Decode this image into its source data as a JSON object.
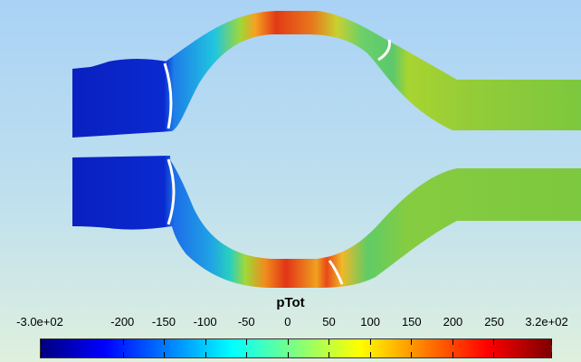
{
  "chart_data": {
    "type": "heatmap",
    "title": "",
    "colorbar": {
      "title": "pTot",
      "min": -300,
      "max": 320,
      "tick_labels": [
        {
          "value": -300,
          "label": "-3.0e+02"
        },
        {
          "value": -200,
          "label": "-200"
        },
        {
          "value": -150,
          "label": "-150"
        },
        {
          "value": -100,
          "label": "-100"
        },
        {
          "value": -50,
          "label": "-50"
        },
        {
          "value": 0,
          "label": "0"
        },
        {
          "value": 50,
          "label": "50"
        },
        {
          "value": 100,
          "label": "100"
        },
        {
          "value": 150,
          "label": "150"
        },
        {
          "value": 200,
          "label": "200"
        },
        {
          "value": 250,
          "label": "250"
        },
        {
          "value": 320,
          "label": "3.2e+02"
        }
      ],
      "colormap": "jet"
    },
    "colors": {
      "background_top": "#a9d2f5",
      "background_bottom": "#dff0de",
      "inlet_blue": "#0a28c8",
      "outlet_green": "#7ccc3a",
      "peak_red": "#e03018"
    }
  }
}
